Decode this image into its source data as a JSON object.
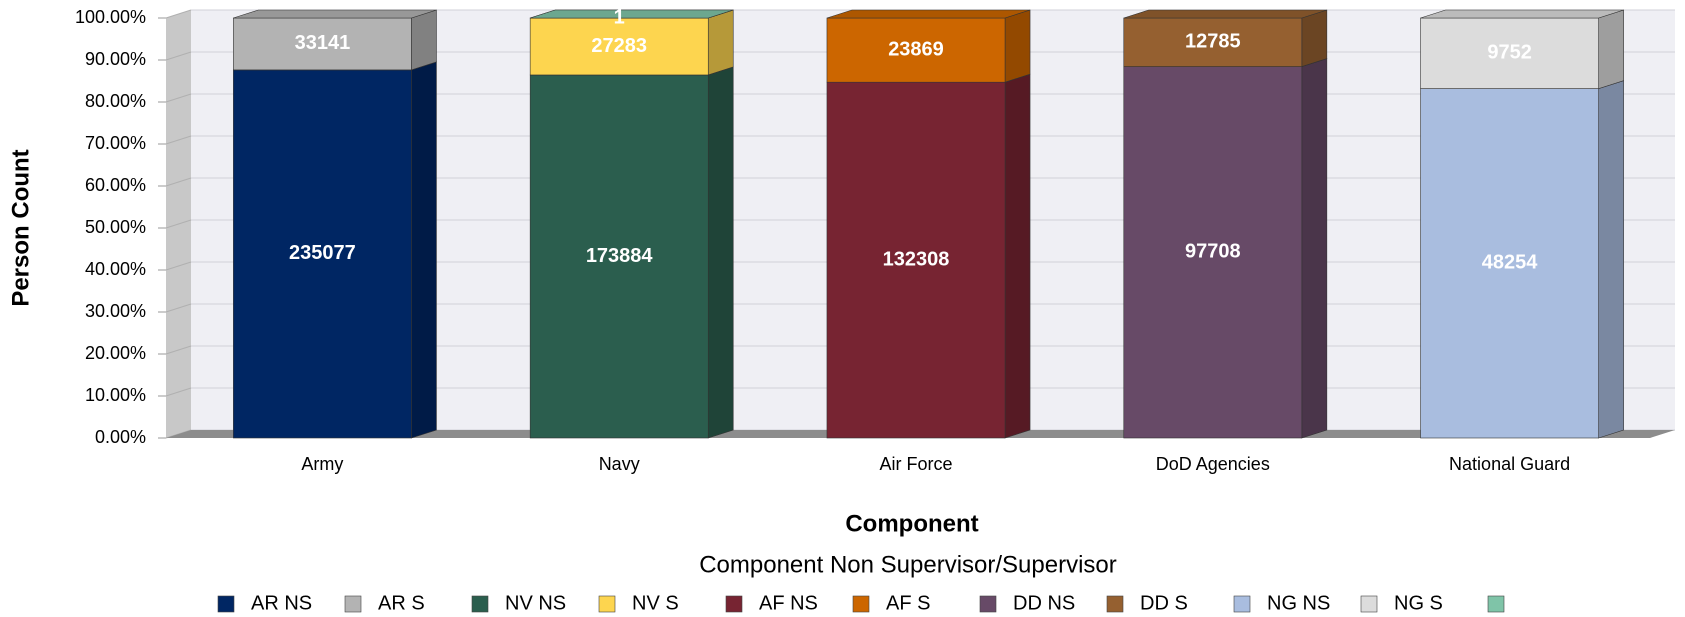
{
  "chart_data": {
    "type": "bar",
    "stacking": "percent",
    "x_label": "Component",
    "y_label": "Person Count",
    "legend_title": "Component Non Supervisor/Supervisor",
    "categories": [
      "Army",
      "Navy",
      "Air Force",
      "DoD Agencies",
      "National Guard"
    ],
    "series": [
      {
        "name": "AR NS",
        "color": "#002663",
        "values": [
          235077,
          null,
          null,
          null,
          null
        ]
      },
      {
        "name": "AR S",
        "color": "#b3b3b3",
        "values": [
          33141,
          null,
          null,
          null,
          null
        ]
      },
      {
        "name": "NV NS",
        "color": "#2b5e4e",
        "values": [
          null,
          173884,
          null,
          null,
          null
        ]
      },
      {
        "name": "NV S",
        "color": "#fdd54f",
        "values": [
          null,
          27283,
          null,
          null,
          null
        ]
      },
      {
        "name": "AF NS",
        "color": "#772432",
        "values": [
          null,
          null,
          132308,
          null,
          null
        ]
      },
      {
        "name": "AF S",
        "color": "#cc6600",
        "values": [
          null,
          null,
          23869,
          null,
          null
        ]
      },
      {
        "name": "DD NS",
        "color": "#674a67",
        "values": [
          null,
          null,
          null,
          97708,
          null
        ]
      },
      {
        "name": "DD S",
        "color": "#956030",
        "values": [
          null,
          null,
          null,
          12785,
          null
        ]
      },
      {
        "name": "NG NS",
        "color": "#a9bddf",
        "values": [
          null,
          null,
          null,
          null,
          48254
        ]
      },
      {
        "name": "NG S",
        "color": "#dcdcdc",
        "values": [
          null,
          null,
          null,
          null,
          9752
        ]
      },
      {
        "color": "#7fc4a8",
        "values": [
          null,
          1,
          null,
          null,
          null
        ]
      }
    ],
    "ylim": [
      0,
      100
    ],
    "yticks": [
      {
        "value": 0,
        "label": "0.00%"
      },
      {
        "value": 10,
        "label": "10.00%"
      },
      {
        "value": 20,
        "label": "20.00%"
      },
      {
        "value": 30,
        "label": "30.00%"
      },
      {
        "value": 40,
        "label": "40.00%"
      },
      {
        "value": 50,
        "label": "50.00%"
      },
      {
        "value": 60,
        "label": "60.00%"
      },
      {
        "value": 70,
        "label": "70.00%"
      },
      {
        "value": 80,
        "label": "80.00%"
      },
      {
        "value": 90,
        "label": "90.00%"
      },
      {
        "value": 100,
        "label": "100.00%"
      }
    ],
    "grid": true,
    "legend": "bottom"
  }
}
